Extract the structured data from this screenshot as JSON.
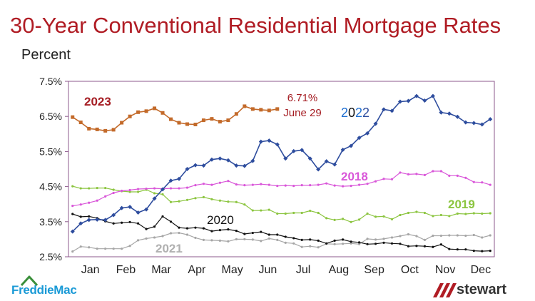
{
  "title": "30-Year Conventional Residential Mortgage Rates",
  "logos": {
    "left": "FreddieMac",
    "right": "stewart"
  },
  "chart_data": {
    "type": "line",
    "title": "30-Year Conventional Residential Mortgage Rates",
    "ylabel": "Percent",
    "xlabel": "",
    "ylim": [
      2.5,
      7.5
    ],
    "y_ticks": [
      "2.5%",
      "3.5%",
      "4.5%",
      "5.5%",
      "6.5%",
      "7.5%"
    ],
    "x_ticks": [
      "Jan",
      "Feb",
      "Mar",
      "Apr",
      "May",
      "Jun",
      "Jul",
      "Aug",
      "Sep",
      "Oct",
      "Nov",
      "Dec"
    ],
    "x_range": [
      0.5,
      52.5
    ],
    "grid": false,
    "annotations": [
      {
        "text": "6.71%",
        "color": "#a51d23"
      },
      {
        "text": "June 29",
        "color": "#a51d23"
      }
    ],
    "series": [
      {
        "name": "2022",
        "color": "#2e4d9e",
        "x": [
          1,
          2,
          3,
          4,
          5,
          6,
          7,
          8,
          9,
          10,
          11,
          12,
          13,
          14,
          15,
          16,
          17,
          18,
          19,
          20,
          21,
          22,
          23,
          24,
          25,
          26,
          27,
          28,
          29,
          30,
          31,
          32,
          33,
          34,
          35,
          36,
          37,
          38,
          39,
          40,
          41,
          42,
          43,
          44,
          45,
          46,
          47,
          48,
          49,
          50,
          51,
          52
        ],
        "values": [
          3.22,
          3.45,
          3.55,
          3.56,
          3.55,
          3.69,
          3.89,
          3.92,
          3.76,
          3.85,
          4.16,
          4.42,
          4.67,
          4.72,
          5.0,
          5.11,
          5.1,
          5.27,
          5.3,
          5.25,
          5.1,
          5.09,
          5.23,
          5.78,
          5.81,
          5.7,
          5.3,
          5.51,
          5.54,
          5.3,
          4.99,
          5.22,
          5.13,
          5.55,
          5.66,
          5.89,
          6.02,
          6.29,
          6.7,
          6.66,
          6.92,
          6.94,
          7.08,
          6.95,
          7.08,
          6.61,
          6.58,
          6.49,
          6.33,
          6.31,
          6.27,
          6.42
        ]
      },
      {
        "name": "2023",
        "color": "#c36a2a",
        "x": [
          1,
          2,
          3,
          4,
          5,
          6,
          7,
          8,
          9,
          10,
          11,
          12,
          13,
          14,
          15,
          16,
          17,
          18,
          19,
          20,
          21,
          22,
          23,
          24,
          25,
          26
        ],
        "values": [
          6.48,
          6.33,
          6.15,
          6.13,
          6.09,
          6.12,
          6.32,
          6.5,
          6.62,
          6.65,
          6.73,
          6.6,
          6.42,
          6.32,
          6.28,
          6.27,
          6.39,
          6.43,
          6.35,
          6.39,
          6.57,
          6.79,
          6.71,
          6.69,
          6.67,
          6.71
        ]
      },
      {
        "name": "2018",
        "color": "#d957d9",
        "x": [
          1,
          2,
          3,
          4,
          5,
          6,
          7,
          8,
          9,
          10,
          11,
          12,
          13,
          14,
          15,
          16,
          17,
          18,
          19,
          20,
          21,
          22,
          23,
          24,
          25,
          26,
          27,
          28,
          29,
          30,
          31,
          32,
          33,
          34,
          35,
          36,
          37,
          38,
          39,
          40,
          41,
          42,
          43,
          44,
          45,
          46,
          47,
          48,
          49,
          50,
          51,
          52
        ],
        "values": [
          3.95,
          3.99,
          4.04,
          4.1,
          4.22,
          4.32,
          4.38,
          4.4,
          4.43,
          4.44,
          4.45,
          4.44,
          4.45,
          4.45,
          4.47,
          4.54,
          4.58,
          4.55,
          4.61,
          4.66,
          4.56,
          4.54,
          4.55,
          4.57,
          4.55,
          4.52,
          4.53,
          4.52,
          4.54,
          4.54,
          4.55,
          4.59,
          4.53,
          4.51,
          4.52,
          4.55,
          4.58,
          4.65,
          4.72,
          4.71,
          4.9,
          4.85,
          4.86,
          4.83,
          4.94,
          4.94,
          4.81,
          4.81,
          4.75,
          4.63,
          4.62,
          4.55
        ]
      },
      {
        "name": "2019",
        "color": "#8cc540",
        "x": [
          1,
          2,
          3,
          4,
          5,
          6,
          7,
          8,
          9,
          10,
          11,
          12,
          13,
          14,
          15,
          16,
          17,
          18,
          19,
          20,
          21,
          22,
          23,
          24,
          25,
          26,
          27,
          28,
          29,
          30,
          31,
          32,
          33,
          34,
          35,
          36,
          37,
          38,
          39,
          40,
          41,
          42,
          43,
          44,
          45,
          46,
          47,
          48,
          49,
          50,
          51,
          52
        ],
        "values": [
          4.51,
          4.45,
          4.45,
          4.46,
          4.46,
          4.41,
          4.37,
          4.35,
          4.35,
          4.41,
          4.31,
          4.28,
          4.06,
          4.08,
          4.12,
          4.17,
          4.2,
          4.14,
          4.1,
          4.07,
          4.06,
          3.99,
          3.82,
          3.82,
          3.84,
          3.73,
          3.73,
          3.75,
          3.75,
          3.81,
          3.75,
          3.6,
          3.55,
          3.58,
          3.49,
          3.56,
          3.73,
          3.64,
          3.65,
          3.57,
          3.69,
          3.75,
          3.78,
          3.75,
          3.66,
          3.69,
          3.66,
          3.73,
          3.72,
          3.74,
          3.73,
          3.74
        ]
      },
      {
        "name": "2020",
        "color": "#111111",
        "x": [
          1,
          2,
          3,
          4,
          5,
          6,
          7,
          8,
          9,
          10,
          11,
          12,
          13,
          14,
          15,
          16,
          17,
          18,
          19,
          20,
          21,
          22,
          23,
          24,
          25,
          26,
          27,
          28,
          29,
          30,
          31,
          32,
          33,
          34,
          35,
          36,
          37,
          38,
          39,
          40,
          41,
          42,
          43,
          44,
          45,
          46,
          47,
          48,
          49,
          50,
          51,
          52
        ],
        "values": [
          3.72,
          3.64,
          3.65,
          3.6,
          3.51,
          3.45,
          3.47,
          3.49,
          3.45,
          3.29,
          3.36,
          3.65,
          3.5,
          3.33,
          3.31,
          3.33,
          3.31,
          3.23,
          3.26,
          3.28,
          3.24,
          3.15,
          3.18,
          3.21,
          3.13,
          3.13,
          3.07,
          3.03,
          2.98,
          2.99,
          2.96,
          2.88,
          2.96,
          2.99,
          2.93,
          2.91,
          2.86,
          2.87,
          2.9,
          2.88,
          2.87,
          2.8,
          2.81,
          2.8,
          2.78,
          2.85,
          2.72,
          2.71,
          2.71,
          2.67,
          2.66,
          2.67
        ]
      },
      {
        "name": "2021",
        "color": "#a6a6a6",
        "x": [
          1,
          2,
          3,
          4,
          5,
          6,
          7,
          8,
          9,
          10,
          11,
          12,
          13,
          14,
          15,
          16,
          17,
          18,
          19,
          20,
          21,
          22,
          23,
          24,
          25,
          26,
          27,
          28,
          29,
          30,
          31,
          32,
          33,
          34,
          35,
          36,
          37,
          38,
          39,
          40,
          41,
          42,
          43,
          44,
          45,
          46,
          47,
          48,
          49,
          50,
          51,
          52
        ],
        "values": [
          2.65,
          2.79,
          2.77,
          2.73,
          2.73,
          2.73,
          2.73,
          2.81,
          2.97,
          3.02,
          3.05,
          3.09,
          3.17,
          3.18,
          3.13,
          3.04,
          2.98,
          2.97,
          2.96,
          2.94,
          3.0,
          3.0,
          2.99,
          2.95,
          3.02,
          2.98,
          2.9,
          2.88,
          2.78,
          2.8,
          2.77,
          2.87,
          2.86,
          2.87,
          2.88,
          2.86,
          3.01,
          2.99,
          3.01,
          3.05,
          3.09,
          3.14,
          3.09,
          2.98,
          3.1,
          3.1,
          3.11,
          3.11,
          3.1,
          3.12,
          3.05,
          3.11
        ]
      }
    ],
    "series_labels": [
      {
        "series": "2023",
        "text": "2023",
        "color": "#a51d23"
      },
      {
        "series": "2022",
        "text": "2022"
      },
      {
        "series": "2018",
        "text": "2018",
        "color": "#d957d9"
      },
      {
        "series": "2019",
        "text": "2019",
        "color": "#8cc540"
      },
      {
        "series": "2020",
        "text": "2020",
        "color": "#111111"
      },
      {
        "series": "2021",
        "text": "2021",
        "color": "#b0b0b0"
      }
    ]
  }
}
